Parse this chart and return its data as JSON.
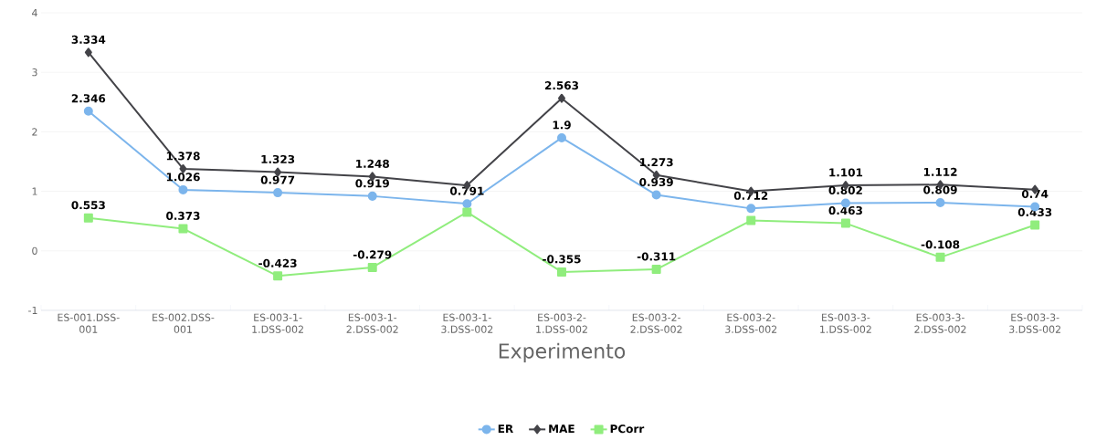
{
  "chart_data": {
    "type": "line",
    "xlabel": "Experimento",
    "categories": [
      "ES-001.DSS-001",
      "ES-002.DSS-001",
      "ES-003-1-1.DSS-002",
      "ES-003-1-2.DSS-002",
      "ES-003-1-3.DSS-002",
      "ES-003-2-1.DSS-002",
      "ES-003-2-2.DSS-002",
      "ES-003-2-3.DSS-002",
      "ES-003-3-1.DSS-002",
      "ES-003-3-2.DSS-002",
      "ES-003-3-3.DSS-002"
    ],
    "series": [
      {
        "name": "ER",
        "color": "#7cb5ec",
        "marker": "circle",
        "values": [
          2.346,
          1.026,
          0.977,
          0.919,
          0.791,
          1.9,
          0.939,
          0.712,
          0.802,
          0.809,
          0.74
        ],
        "value_labels": [
          "2.346",
          "1.026",
          "0.977",
          "0.919",
          "0.791",
          "1.9",
          "0.939",
          "0.712",
          "0.802",
          "0.809",
          "0.74"
        ]
      },
      {
        "name": "MAE",
        "color": "#434348",
        "marker": "diamond",
        "values": [
          3.334,
          1.378,
          1.323,
          1.248,
          1.1,
          2.563,
          1.273,
          1.0,
          1.101,
          1.112,
          1.03
        ],
        "value_labels": [
          "3.334",
          "1.378",
          "1.323",
          "1.248",
          null,
          "2.563",
          "1.273",
          null,
          "1.101",
          "1.112",
          null
        ]
      },
      {
        "name": "PCorr",
        "color": "#90ed7d",
        "marker": "square",
        "values": [
          0.553,
          0.373,
          -0.423,
          -0.279,
          0.65,
          -0.355,
          -0.311,
          0.51,
          0.463,
          -0.108,
          0.433
        ],
        "value_labels": [
          "0.553",
          "0.373",
          "-0.423",
          "-0.279",
          null,
          "-0.355",
          "-0.311",
          null,
          "0.463",
          "-0.108",
          "0.433"
        ]
      }
    ],
    "ylim": [
      -1,
      4
    ],
    "yticks": [
      -1,
      0,
      1,
      2,
      3,
      4
    ],
    "grid": "y",
    "legend": "bottom",
    "line_style": "solid"
  }
}
